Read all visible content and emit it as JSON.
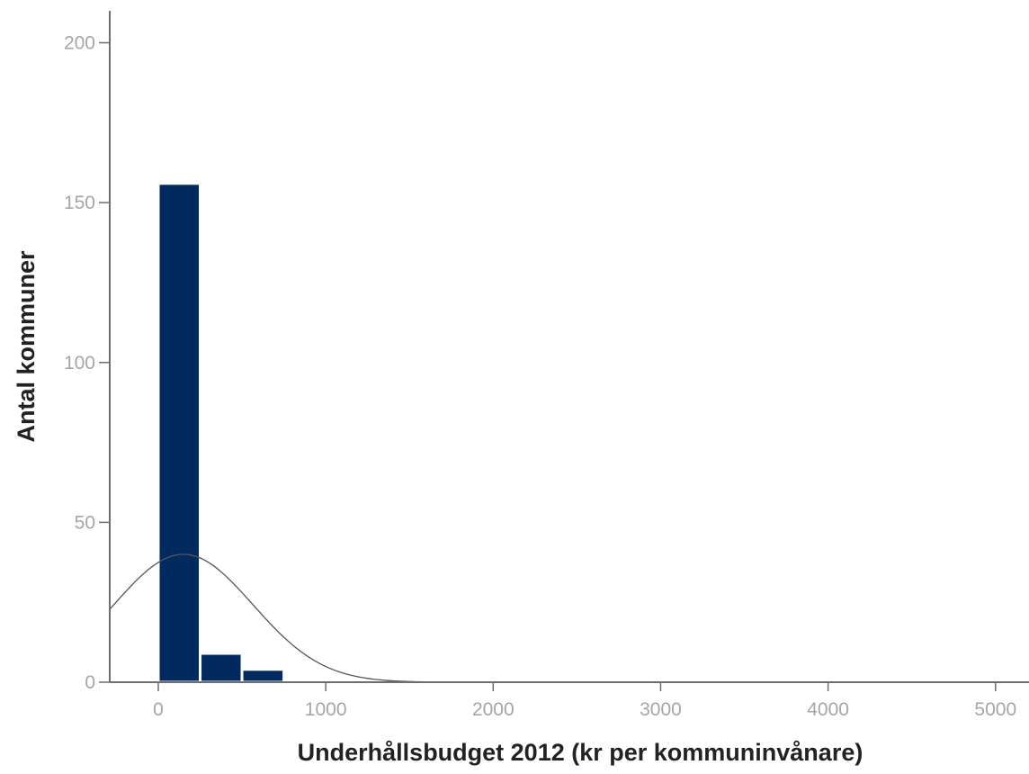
{
  "chart_data": {
    "type": "bar",
    "title": "",
    "xlabel": "Underhållsbudget 2012 (kr per kommuninvånare)",
    "ylabel": "Antal kommuner",
    "xlim": [
      -290,
      5200
    ],
    "ylim": [
      0,
      210
    ],
    "x_ticks": [
      0,
      1000,
      2000,
      3000,
      4000,
      5000
    ],
    "y_ticks": [
      0,
      50,
      100,
      150,
      200
    ],
    "bin_width": 250,
    "bins": [
      {
        "x0": 0,
        "x1": 250,
        "count": 156
      },
      {
        "x0": 250,
        "x1": 500,
        "count": 9
      },
      {
        "x0": 500,
        "x1": 750,
        "count": 4
      }
    ],
    "normal_curve": {
      "mean": 150,
      "sd": 415,
      "peak": 40
    },
    "colors": {
      "bar": "#002a60",
      "bar_edge": "#ffffff",
      "curve": "#555555",
      "axis": "#6e6e6e",
      "tick_label": "#a6a6a6"
    },
    "grid": false,
    "legend": "none"
  }
}
